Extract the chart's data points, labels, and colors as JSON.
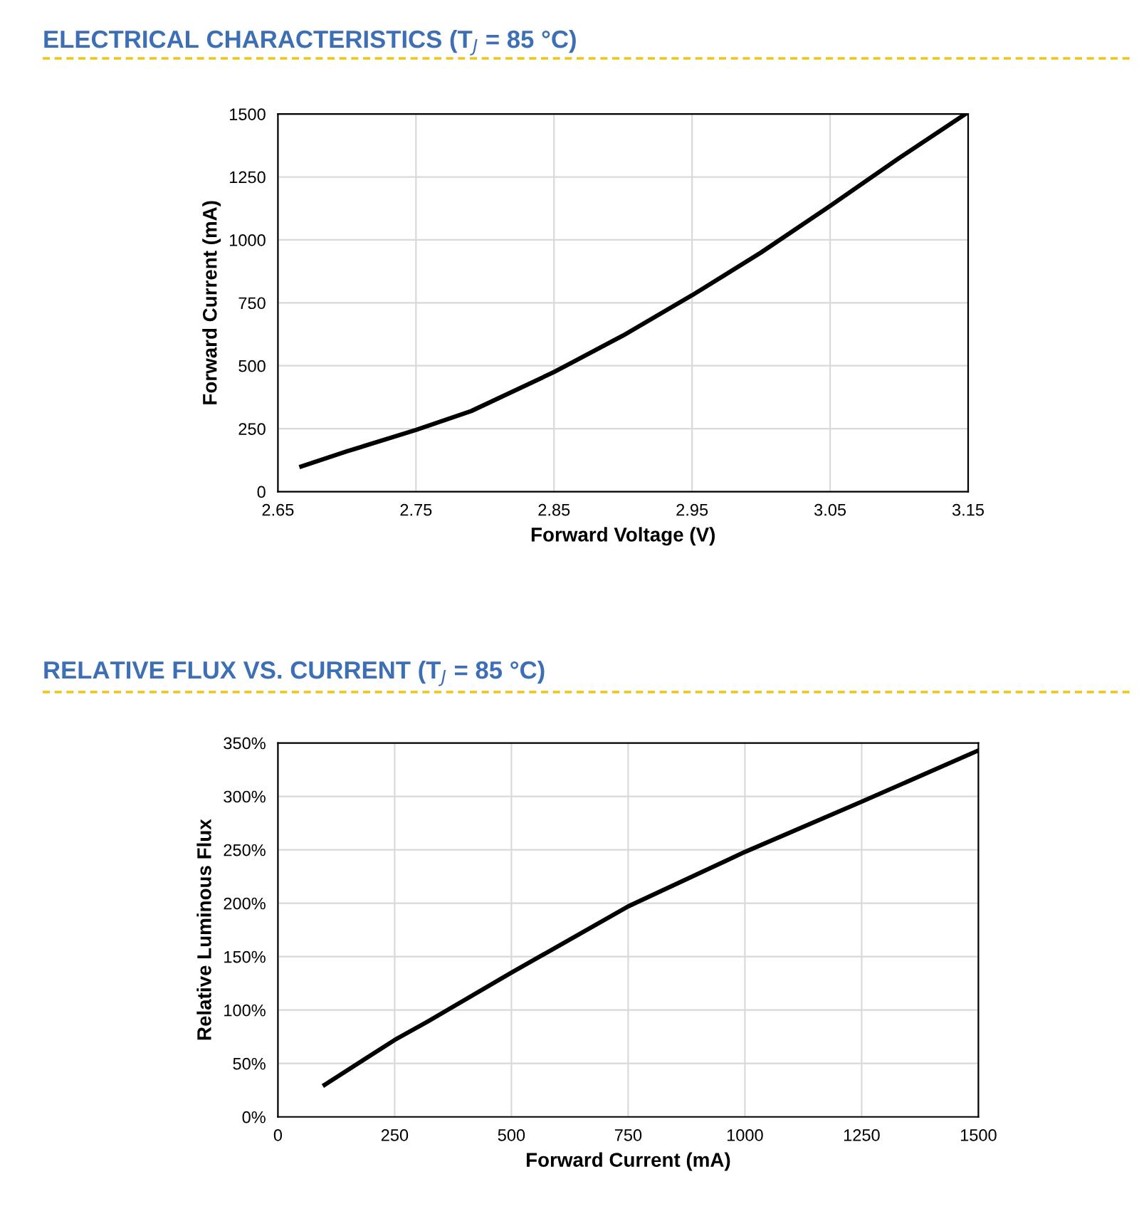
{
  "chart_data": [
    {
      "type": "line",
      "title": "ELECTRICAL CHARACTERISTICS (T$_{J}$ = 85 °C)",
      "xlabel": "Forward Voltage (V)",
      "ylabel": "Forward Current (mA)",
      "x": [
        2.667,
        2.7,
        2.75,
        2.79,
        2.85,
        2.9,
        2.95,
        3.0,
        3.05,
        3.1,
        3.148
      ],
      "values": [
        100,
        160,
        245,
        320,
        475,
        620,
        780,
        950,
        1135,
        1325,
        1500
      ],
      "color": "#000000",
      "xlim": [
        2.65,
        3.15
      ],
      "xticks": [
        2.65,
        2.75,
        2.85,
        2.95,
        3.05,
        3.15
      ],
      "ylim": [
        0,
        1500
      ],
      "yticks": [
        0,
        250,
        500,
        750,
        1000,
        1250,
        1500
      ],
      "grid": true
    },
    {
      "type": "line",
      "title": "RELATIVE FLUX VS. CURRENT (T$_{J}$ = 85 °C)",
      "xlabel": "Forward Current (mA)",
      "ylabel": "Relative Luminous Flux",
      "x": [
        100,
        250,
        320,
        500,
        750,
        1000,
        1250,
        1500
      ],
      "values": [
        30,
        72,
        89,
        135,
        197,
        248,
        295,
        343
      ],
      "color": "#000000",
      "xlim": [
        0,
        1500
      ],
      "xticks": [
        0,
        250,
        500,
        750,
        1000,
        1250,
        1500
      ],
      "ylim": [
        0,
        350
      ],
      "yticks": [
        {
          "value": 0,
          "label": "0%"
        },
        {
          "value": 50,
          "label": "50%"
        },
        {
          "value": 100,
          "label": "100%"
        },
        {
          "value": 150,
          "label": "150%"
        },
        {
          "value": 200,
          "label": "200%"
        },
        {
          "value": 250,
          "label": "250%"
        },
        {
          "value": 300,
          "label": "300%"
        },
        {
          "value": 350,
          "label": "350%"
        }
      ],
      "grid": true
    }
  ]
}
